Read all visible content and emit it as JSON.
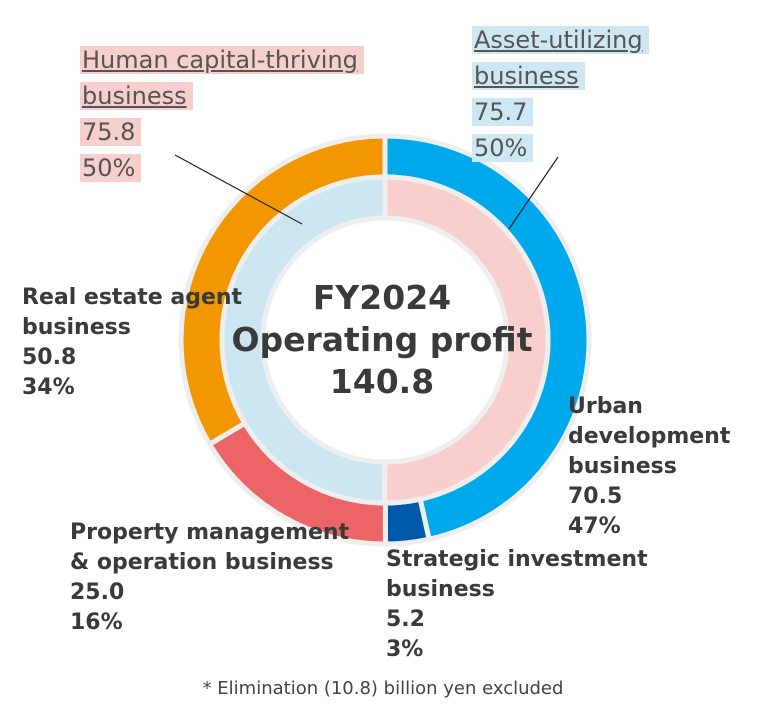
{
  "chart_data": {
    "type": "pie",
    "center": {
      "title": "FY2024",
      "subtitle": "Operating profit",
      "total": "140.8"
    },
    "inner_ring": [
      {
        "name_lines": [
          "Human capital-thriving",
          "business"
        ],
        "value": 75.8,
        "value_text": "75.8",
        "share": "50%",
        "color": "#f8cfcd"
      },
      {
        "name_lines": [
          "Asset-utilizing",
          "business"
        ],
        "value": 75.7,
        "value_text": "75.7",
        "share": "50%",
        "color": "#cbe6f1"
      }
    ],
    "outer_ring": [
      {
        "name_lines": [
          "Urban",
          "development",
          "business"
        ],
        "value": 70.5,
        "value_text": "70.5",
        "share": "47%",
        "color": "#00a9eb"
      },
      {
        "name_lines": [
          "Strategic investment",
          "business"
        ],
        "value": 5.2,
        "value_text": "5.2",
        "share": "3%",
        "color": "#0058a8"
      },
      {
        "name_lines": [
          "Property management",
          "& operation business"
        ],
        "value": 25.0,
        "value_text": "25.0",
        "share": "16%",
        "color": "#ec6466"
      },
      {
        "name_lines": [
          "Real estate agent",
          "business"
        ],
        "value": 50.8,
        "value_text": "50.8",
        "share": "34%",
        "color": "#f39700"
      }
    ],
    "note": "* Elimination (10.8) billion yen excluded"
  }
}
